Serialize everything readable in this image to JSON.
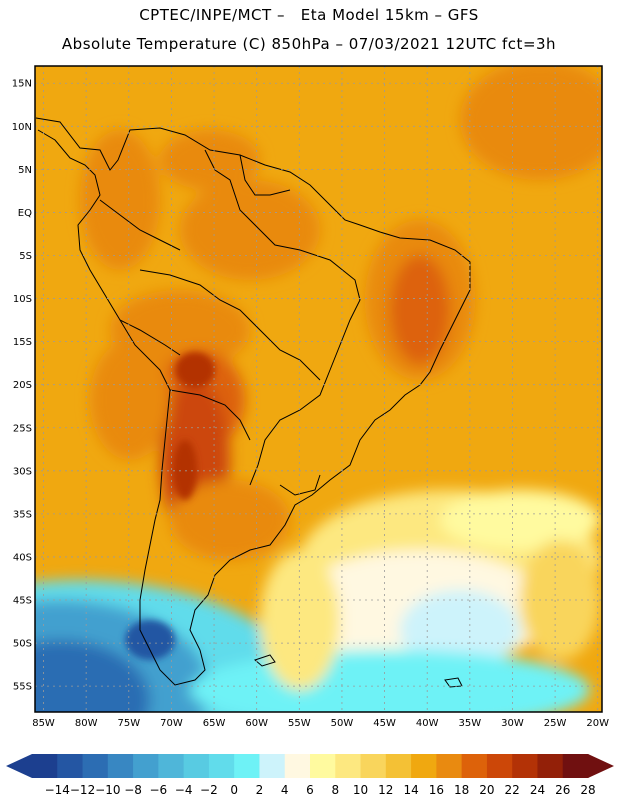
{
  "header": {
    "line1": "CPTEC/INPE/MCT –   Eta Model 15km – GFS",
    "line2": "Absolute Temperature (C) 850hPa – 07/03/2021 12UTC fct=3h"
  },
  "map": {
    "lat_labels": [
      "15N",
      "10N",
      "5N",
      "EQ",
      "5S",
      "10S",
      "15S",
      "20S",
      "25S",
      "30S",
      "35S",
      "40S",
      "45S",
      "50S",
      "55S"
    ],
    "lon_labels": [
      "85W",
      "80W",
      "75W",
      "70W",
      "65W",
      "60W",
      "55W",
      "50W",
      "45W",
      "40W",
      "35W",
      "30W",
      "25W",
      "20W"
    ],
    "lat_values": [
      15,
      10,
      5,
      0,
      -5,
      -10,
      -15,
      -20,
      -25,
      -30,
      -35,
      -40,
      -45,
      -50,
      -55
    ],
    "lon_values": [
      -85,
      -80,
      -75,
      -70,
      -65,
      -60,
      -55,
      -50,
      -45,
      -40,
      -35,
      -30,
      -25,
      -20
    ],
    "extent": {
      "lon_min": -86,
      "lon max": -19.5,
      "lat_min": -58,
      "lat_max": 17
    }
  },
  "colorbar": {
    "labels": [
      "-14",
      "-12",
      "-10",
      "-8",
      "-6",
      "-4",
      "-2",
      "0",
      "2",
      "4",
      "6",
      "8",
      "10",
      "12",
      "14",
      "16",
      "18",
      "20",
      "22",
      "24",
      "26",
      "28"
    ],
    "colors": [
      "#1c3f8f",
      "#2456a3",
      "#2c6db3",
      "#3887c2",
      "#43a0cf",
      "#4fb6d9",
      "#58cbe2",
      "#61dceb",
      "#6ef2f6",
      "#cdf3fb",
      "#fff8e1",
      "#fffa9f",
      "#fde880",
      "#f9d55c",
      "#f4c135",
      "#f0a810",
      "#e98a10",
      "#dd620a",
      "#cc4708",
      "#b33206",
      "#932008",
      "#701010"
    ]
  }
}
